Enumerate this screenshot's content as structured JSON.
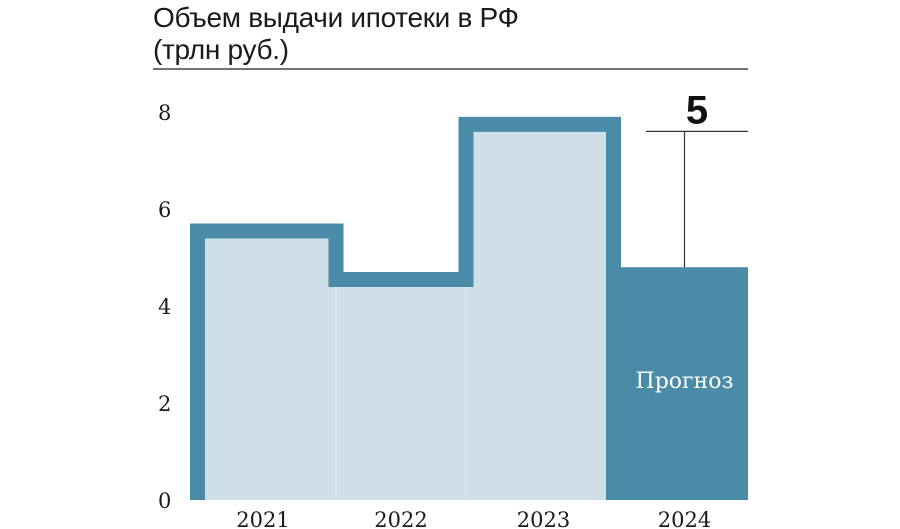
{
  "chart_data": {
    "type": "bar",
    "title": "Объем выдачи ипотеки в РФ",
    "subtitle": "(трлн руб.)",
    "categories": [
      "2021",
      "2022",
      "2023",
      "2024"
    ],
    "values": [
      5.7,
      4.7,
      7.9,
      4.8
    ],
    "forecast_index": 3,
    "forecast_label": "Прогноз",
    "forecast_value_label": "5",
    "forecast_high": 7.6,
    "yticks": [
      "0",
      "2",
      "4",
      "6",
      "8"
    ],
    "ylim": [
      0,
      8.2
    ],
    "colors": {
      "outline": "#4a8ca8",
      "fill": "#cfdfe8",
      "forecast": "#4a8ca8"
    }
  }
}
